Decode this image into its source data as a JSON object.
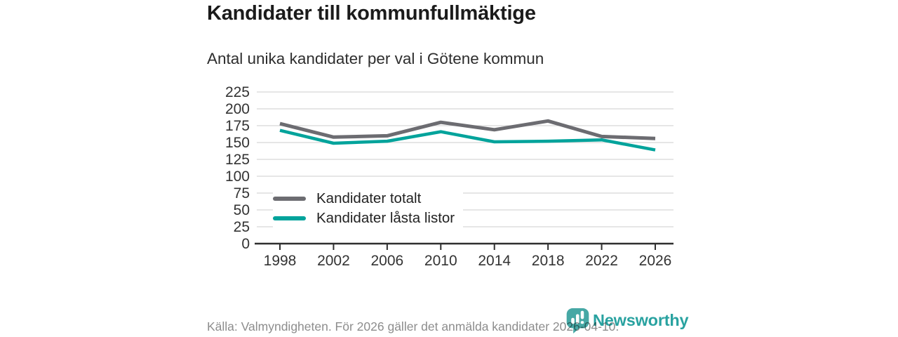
{
  "chart_data": {
    "type": "line",
    "title": "Kandidater till kommunfullmäktige",
    "subtitle": "Antal unika kandidater per val i Götene kommun",
    "categories": [
      "1998",
      "2002",
      "2006",
      "2010",
      "2014",
      "2018",
      "2022",
      "2026"
    ],
    "series": [
      {
        "name": "Kandidater totalt",
        "color": "#6c6c71",
        "values": [
          178,
          158,
          160,
          180,
          169,
          182,
          159,
          156
        ]
      },
      {
        "name": "Kandidater låsta listor",
        "color": "#00a39b",
        "values": [
          168,
          149,
          152,
          166,
          151,
          152,
          154,
          139
        ]
      }
    ],
    "ylim": [
      0,
      225
    ],
    "y_ticks": [
      0,
      25,
      50,
      75,
      100,
      125,
      150,
      175,
      200,
      225
    ],
    "grid": "horizontal-light",
    "grid_color": "#d8d8d8",
    "axis_color": "#2f2f2f",
    "tick_label_color": "#333333",
    "legend_position": "inside-bottom-left"
  },
  "footer": {
    "source_note": "Källa: Valmyndigheten. För 2026 gäller det anmälda kandidater 2026-04-10."
  },
  "logo": {
    "text": "Newsworthy",
    "icon": "newsworthy-speech-bubble-bar-chart-icon",
    "icon_color": "#46a8a5",
    "text_color": "#29a2a0"
  }
}
